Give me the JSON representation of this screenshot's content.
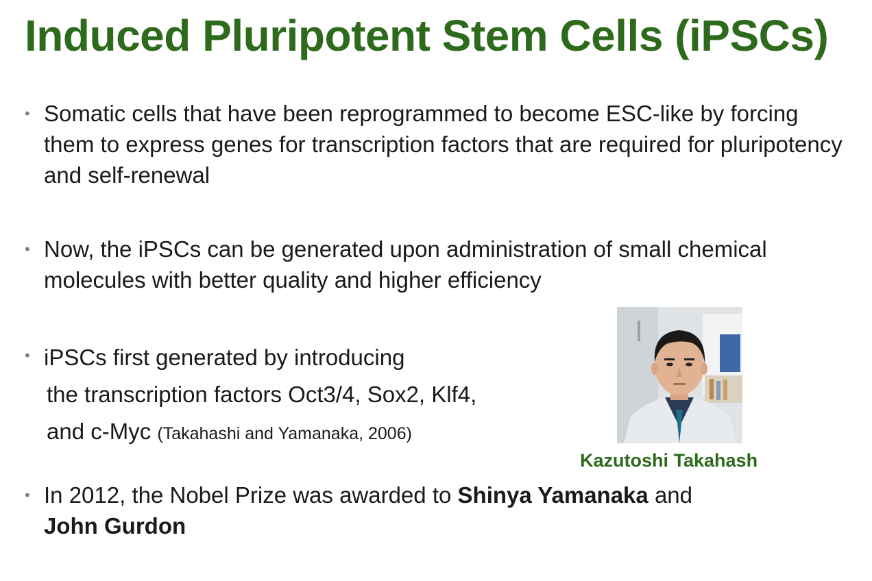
{
  "slide": {
    "title": "Induced Pluripotent Stem Cells (iPSCs)",
    "bullets": {
      "b1": "Somatic cells that have been reprogrammed to become ESC-like by forcing them to express genes for transcription factors that are required for pluripotency and self-renewal",
      "b2": "Now, the iPSCs can be generated upon administration of small chemical molecules with better quality and higher efficiency",
      "b3": {
        "line1": "iPSCs first generated by introducing",
        "line2": "the transcription factors Oct3/4, Sox2, Klf4,",
        "line3": "and c-Myc",
        "citation": "(Takahashi and Yamanaka, 2006)"
      },
      "b4": {
        "prefix": "In 2012, the Nobel Prize was awarded to",
        "name1": "Shinya Yamanaka",
        "conjunction": "and",
        "name2": "John Gurdon"
      }
    },
    "photo": {
      "caption": "Kazutoshi Takahash"
    }
  },
  "colors": {
    "title": "#2e6a1c",
    "bullet_dot": "#7f7f7f",
    "body_text": "#1a1a1a"
  }
}
